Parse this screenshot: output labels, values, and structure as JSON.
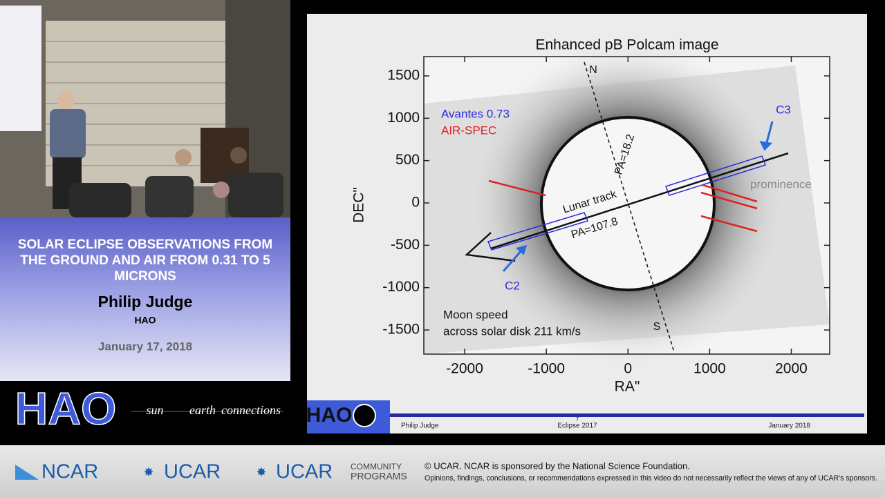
{
  "speaker_panel": {
    "title_lines": [
      "SOLAR ECLIPSE OBSERVATIONS FROM",
      "THE GROUND AND AIR FROM 0.31 TO 5",
      "MICRONS"
    ],
    "speaker": "Philip Judge",
    "affiliation": "HAO",
    "date": "January 17, 2018",
    "logo": "HAO",
    "tagline": [
      "sun",
      "earth",
      "connections"
    ]
  },
  "slide": {
    "plot": {
      "title": "Enhanced pB Polcam image",
      "xlabel": "RA\"",
      "ylabel": "DEC\"",
      "xlim": [
        -2500,
        2470
      ],
      "ylim": [
        -1785,
        1728
      ],
      "xticks": [
        -2000,
        -1000,
        0,
        1000,
        2000
      ],
      "yticks": [
        -1500,
        -1000,
        -500,
        0,
        500,
        1000,
        1500
      ],
      "legend": [
        {
          "name": "Avantes 0.73",
          "color": "#2a2ae0"
        },
        {
          "name": "AIR-SPEC",
          "color": "#e02020"
        }
      ],
      "annotations": {
        "north": "N",
        "south": "S",
        "c3": "C3",
        "c2": "C2",
        "prominence": "prominence",
        "lunar_track": "Lunar track",
        "pa_track": "PA=107.8",
        "pa_axis": "PA=18.2",
        "speed_line1": "Moon speed",
        "speed_line2": "across solar disk 211 km/s"
      }
    },
    "footer": {
      "logo": "HAO",
      "author": "Philip Judge",
      "page": "7",
      "event": "Eclipse 2017",
      "date": "January 2018"
    }
  },
  "footer": {
    "ncar": "NCAR",
    "ucar": "UCAR",
    "ucar2": "UCAR",
    "community": "COMMUNITY",
    "programs": "PROGRAMS",
    "copyright": "© UCAR. NCAR is sponsored by the National Science Foundation.",
    "disclaimer": "Opinions, findings, conclusions, or recommendations expressed in this video do not necessarily reflect the views of any of UCAR's sponsors."
  }
}
